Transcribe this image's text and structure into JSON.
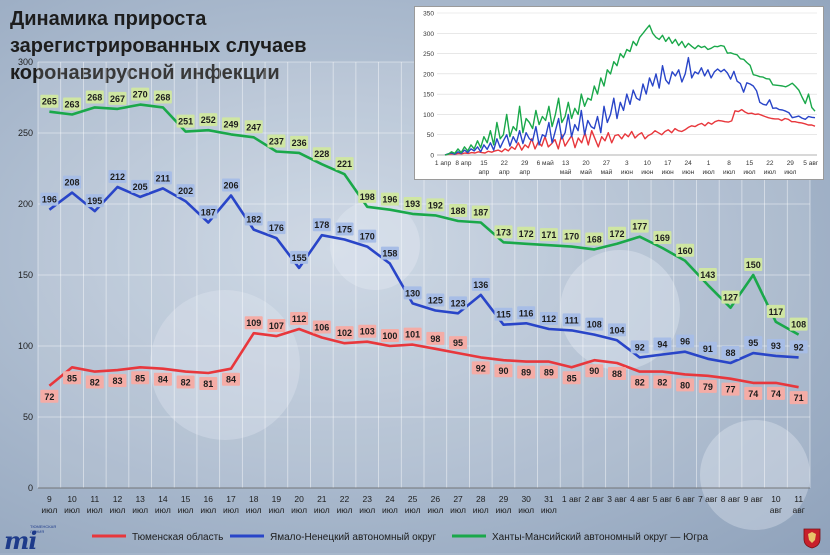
{
  "title": "Динамика прироста зарегистрированных случаев коронавирусной инфекции",
  "logo": {
    "text": "mi",
    "caption": "ТЮМЕНСКАЯ ЛИНИЯ"
  },
  "colors": {
    "tyumen": "#e8373c",
    "yamal": "#2945c8",
    "khmao": "#1aa84a",
    "tyumen_label": "#f4aca6",
    "yamal_label": "#a7bde6",
    "khmao_label": "#cfe6a2"
  },
  "chart_data": [
    {
      "type": "line",
      "title": "Динамика прироста зарегистрированных случаев коронавирусной инфекции",
      "xlabel": "",
      "ylabel": "",
      "ylim": [
        0,
        300
      ],
      "yticks": [
        0,
        50,
        100,
        150,
        200,
        250,
        300
      ],
      "grid": true,
      "legend_position": "bottom",
      "categories": [
        [
          "9",
          "июл"
        ],
        [
          "10",
          "июл"
        ],
        [
          "11",
          "июл"
        ],
        [
          "12",
          "июл"
        ],
        [
          "13",
          "июл"
        ],
        [
          "14",
          "июл"
        ],
        [
          "15",
          "июл"
        ],
        [
          "16",
          "июл"
        ],
        [
          "17",
          "июл"
        ],
        [
          "18",
          "июл"
        ],
        [
          "19",
          "июл"
        ],
        [
          "20",
          "июл"
        ],
        [
          "21",
          "июл"
        ],
        [
          "22",
          "июл"
        ],
        [
          "23",
          "июл"
        ],
        [
          "24",
          "июл"
        ],
        [
          "25",
          "июл"
        ],
        [
          "26",
          "июл"
        ],
        [
          "27",
          "июл"
        ],
        [
          "28",
          "июл"
        ],
        [
          "29",
          "июл"
        ],
        [
          "30",
          "июл"
        ],
        [
          "31",
          "июл"
        ],
        [
          "1 авг",
          ""
        ],
        [
          "2 авг",
          ""
        ],
        [
          "3 авг",
          ""
        ],
        [
          "4 авг",
          ""
        ],
        [
          "5 авг",
          ""
        ],
        [
          "6 авг",
          ""
        ],
        [
          "7 авг",
          ""
        ],
        [
          "8 авг",
          ""
        ],
        [
          "9 авг",
          ""
        ],
        [
          "10",
          "авг"
        ],
        [
          "11",
          "авг"
        ]
      ],
      "series": [
        {
          "name": "Тюменская область",
          "color": "#e8373c",
          "values": [
            72,
            85,
            82,
            83,
            85,
            84,
            82,
            81,
            84,
            109,
            107,
            112,
            106,
            102,
            103,
            100,
            101,
            98,
            95,
            92,
            90,
            89,
            89,
            85,
            90,
            88,
            82,
            82,
            80,
            79,
            77,
            74,
            74,
            71
          ]
        },
        {
          "name": "Ямало-Ненецкий автономный округ",
          "color": "#2945c8",
          "values": [
            196,
            208,
            195,
            212,
            205,
            211,
            202,
            187,
            206,
            182,
            176,
            155,
            178,
            175,
            170,
            158,
            130,
            125,
            123,
            136,
            115,
            116,
            112,
            111,
            108,
            104,
            92,
            94,
            96,
            91,
            88,
            95,
            93,
            92
          ]
        },
        {
          "name": "Ханты-Мансийский автономный округ — Югра",
          "color": "#1aa84a",
          "values": [
            265,
            263,
            268,
            267,
            270,
            268,
            251,
            252,
            249,
            247,
            237,
            236,
            228,
            221,
            198,
            196,
            193,
            192,
            188,
            187,
            173,
            172,
            171,
            170,
            168,
            172,
            177,
            169,
            160,
            143,
            127,
            150,
            117,
            108
          ]
        }
      ]
    },
    {
      "type": "line",
      "title": "",
      "ylim": [
        0,
        350
      ],
      "yticks": [
        0,
        50,
        100,
        150,
        200,
        250,
        300,
        350
      ],
      "grid": true,
      "xticks": [
        [
          "1 апр",
          ""
        ],
        [
          "8 апр",
          ""
        ],
        [
          "15",
          "апр"
        ],
        [
          "22",
          "апр"
        ],
        [
          "29",
          "апр"
        ],
        [
          "6 май",
          ""
        ],
        [
          "13",
          "май"
        ],
        [
          "20",
          "май"
        ],
        [
          "27",
          "май"
        ],
        [
          "3",
          "июн"
        ],
        [
          "10",
          "июн"
        ],
        [
          "17",
          "июн"
        ],
        [
          "24",
          "июн"
        ],
        [
          "1",
          "июл"
        ],
        [
          "8",
          "июл"
        ],
        [
          "15",
          "июл"
        ],
        [
          "22",
          "июл"
        ],
        [
          "29",
          "июл"
        ],
        [
          "5 авг",
          ""
        ]
      ],
      "series": [
        {
          "name": "Тюменская область",
          "color": "#e8373c",
          "values": [
            0,
            2,
            3,
            2,
            4,
            3,
            5,
            4,
            6,
            5,
            8,
            6,
            5,
            9,
            7,
            10,
            12,
            8,
            15,
            10,
            20,
            14,
            30,
            12,
            25,
            18,
            40,
            15,
            32,
            22,
            45,
            20,
            28,
            38,
            15,
            50,
            22,
            35,
            48,
            18,
            42,
            30,
            55,
            25,
            60,
            40,
            20,
            45,
            35,
            55,
            30,
            48,
            50,
            40,
            52,
            45,
            58,
            42,
            50,
            55,
            40,
            48,
            52,
            60,
            55,
            50,
            58,
            62,
            55,
            65,
            60,
            58,
            62,
            68,
            72,
            70,
            75,
            78,
            72,
            80,
            76,
            82,
            85,
            84,
            82,
            81,
            84,
            109,
            107,
            112,
            106,
            102,
            103,
            100,
            101,
            98,
            95,
            92,
            90,
            89,
            89,
            85,
            90,
            88,
            82,
            82,
            80,
            79,
            77,
            74,
            74,
            71
          ]
        },
        {
          "name": "Ямало-Ненецкий автономный округ",
          "color": "#2945c8",
          "values": [
            0,
            3,
            5,
            2,
            8,
            4,
            12,
            6,
            15,
            10,
            20,
            8,
            25,
            14,
            30,
            12,
            40,
            18,
            35,
            50,
            22,
            45,
            30,
            60,
            28,
            55,
            40,
            35,
            70,
            25,
            50,
            45,
            80,
            30,
            60,
            90,
            40,
            55,
            100,
            45,
            75,
            60,
            110,
            50,
            85,
            70,
            65,
            95,
            55,
            120,
            80,
            100,
            140,
            90,
            130,
            110,
            150,
            125,
            160,
            140,
            135,
            175,
            150,
            190,
            170,
            200,
            165,
            220,
            185,
            175,
            205,
            195,
            210,
            180,
            200,
            240,
            190,
            205,
            200,
            215,
            195,
            210,
            190,
            205,
            212,
            205,
            211,
            202,
            187,
            206,
            182,
            176,
            155,
            178,
            175,
            170,
            158,
            130,
            125,
            123,
            136,
            115,
            116,
            112,
            111,
            108,
            104,
            92,
            94,
            96,
            91,
            88,
            95,
            93,
            92
          ]
        },
        {
          "name": "Ханты-Мансийский автономный округ — Югра",
          "color": "#1aa84a",
          "values": [
            0,
            2,
            8,
            4,
            15,
            6,
            20,
            10,
            25,
            15,
            35,
            18,
            45,
            30,
            60,
            25,
            80,
            40,
            50,
            100,
            45,
            70,
            60,
            120,
            55,
            90,
            80,
            65,
            110,
            75,
            95,
            85,
            120,
            70,
            100,
            140,
            80,
            95,
            130,
            90,
            115,
            100,
            150,
            120,
            140,
            135,
            170,
            150,
            190,
            170,
            210,
            200,
            230,
            220,
            250,
            240,
            260,
            255,
            280,
            270,
            290,
            300,
            310,
            320,
            300,
            290,
            285,
            295,
            280,
            290,
            275,
            285,
            270,
            280,
            265,
            275,
            268,
            262,
            270,
            265,
            268,
            260,
            263,
            268,
            267,
            270,
            268,
            251,
            252,
            249,
            247,
            237,
            236,
            228,
            221,
            198,
            196,
            193,
            192,
            188,
            187,
            173,
            172,
            171,
            170,
            168,
            172,
            177,
            169,
            160,
            143,
            127,
            150,
            117,
            108
          ]
        }
      ]
    }
  ]
}
